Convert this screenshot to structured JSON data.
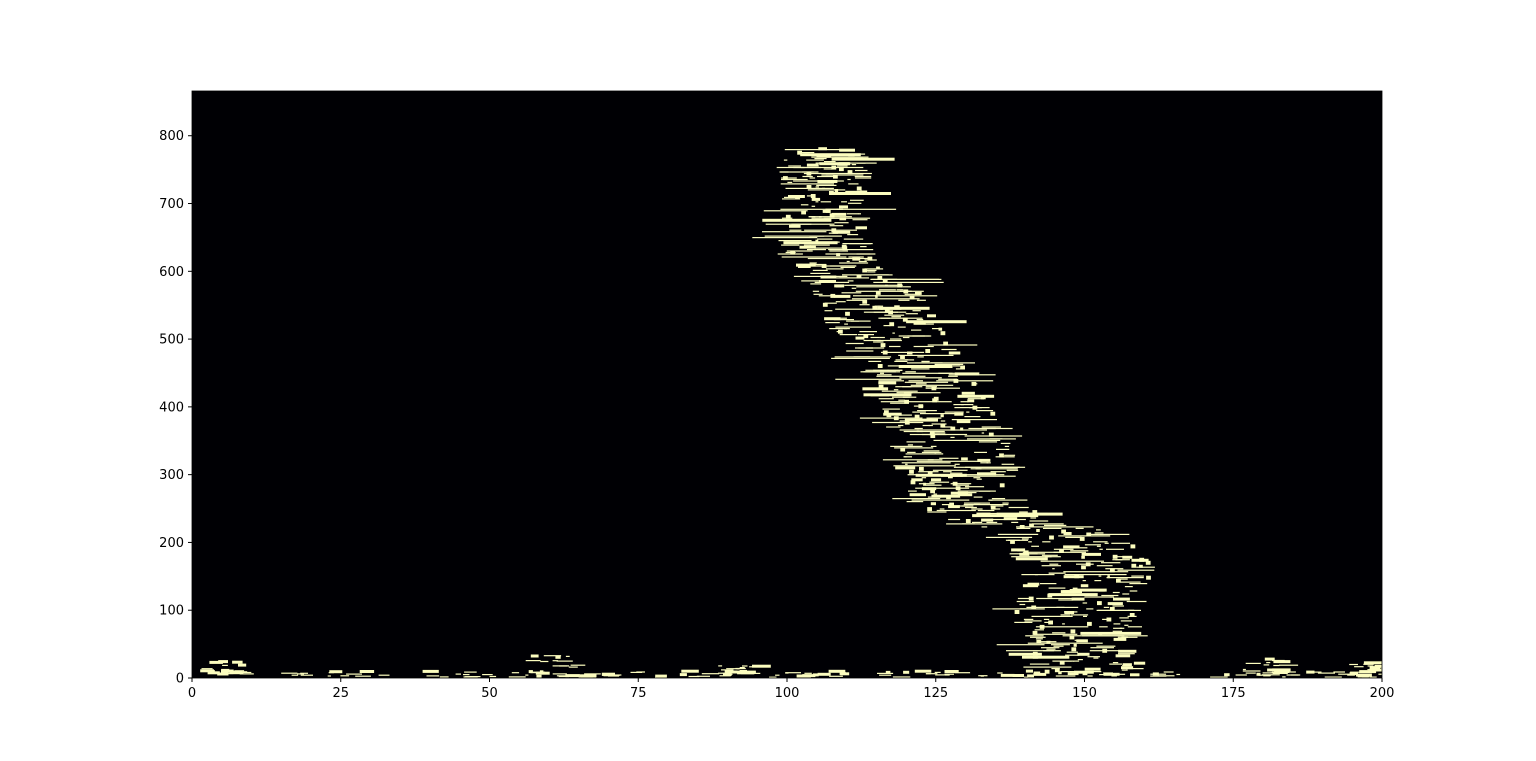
{
  "chart_data": {
    "type": "heatmap",
    "title": "",
    "xlabel": "",
    "ylabel": "",
    "xlim": [
      0,
      200
    ],
    "ylim": [
      0,
      866
    ],
    "grid": false,
    "legend": "none",
    "colors": {
      "background": "#000004",
      "mark": "#fcfdbf",
      "axis": "#000000"
    },
    "xticks": [
      {
        "value": 0,
        "label": "0"
      },
      {
        "value": 25,
        "label": "25"
      },
      {
        "value": 50,
        "label": "50"
      },
      {
        "value": 75,
        "label": "75"
      },
      {
        "value": 100,
        "label": "100"
      },
      {
        "value": 125,
        "label": "125"
      },
      {
        "value": 150,
        "label": "150"
      },
      {
        "value": 175,
        "label": "175"
      },
      {
        "value": 200,
        "label": "200"
      }
    ],
    "yticks": [
      {
        "value": 0,
        "label": "0"
      },
      {
        "value": 100,
        "label": "100"
      },
      {
        "value": 200,
        "label": "200"
      },
      {
        "value": 300,
        "label": "300"
      },
      {
        "value": 400,
        "label": "400"
      },
      {
        "value": 500,
        "label": "500"
      },
      {
        "value": 600,
        "label": "600"
      },
      {
        "value": 700,
        "label": "700"
      },
      {
        "value": 800,
        "label": "800"
      }
    ],
    "band": {
      "description_points": [
        {
          "y": 0,
          "x": 150
        },
        {
          "y": 100,
          "x": 148
        },
        {
          "y": 160,
          "x": 152
        },
        {
          "y": 210,
          "x": 146
        },
        {
          "y": 250,
          "x": 130
        },
        {
          "y": 350,
          "x": 128
        },
        {
          "y": 450,
          "x": 122
        },
        {
          "y": 580,
          "x": 112
        },
        {
          "y": 640,
          "x": 106
        },
        {
          "y": 780,
          "x": 106
        }
      ],
      "baseline_clusters": [
        {
          "x": 5,
          "y": 20
        },
        {
          "x": 60,
          "y": 30
        },
        {
          "x": 91,
          "y": 15
        },
        {
          "x": 180,
          "y": 25
        },
        {
          "x": 198,
          "y": 20
        }
      ]
    }
  }
}
